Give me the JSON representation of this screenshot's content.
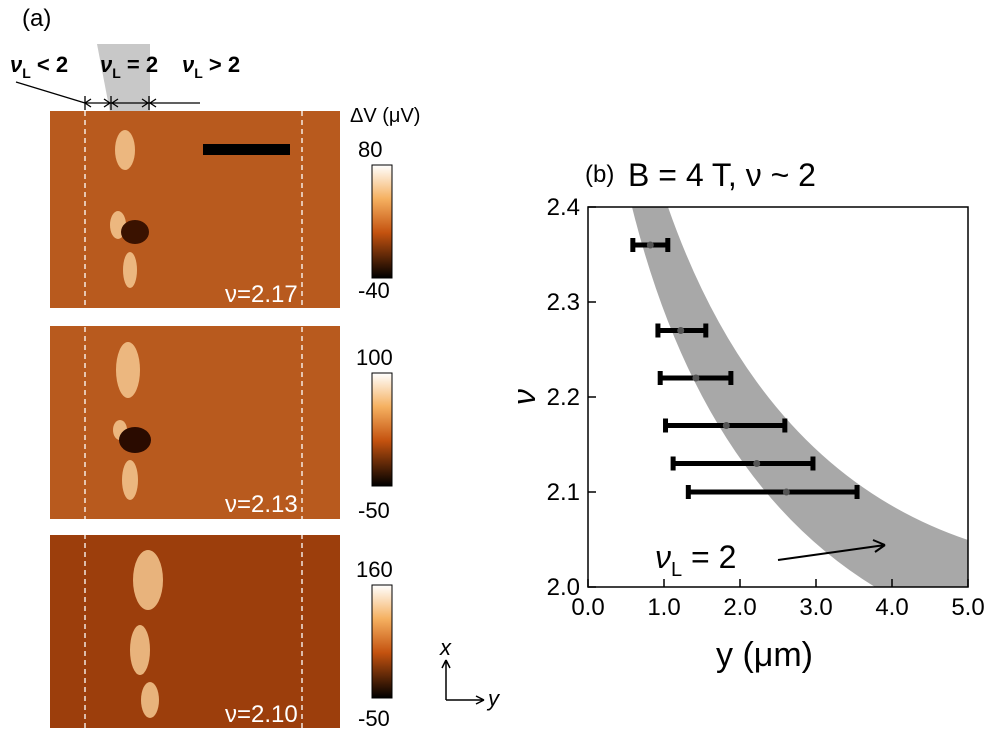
{
  "panel_a": {
    "label": "(a)",
    "regions": [
      {
        "symbol": "ν",
        "sub": "L",
        "rest": " < 2"
      },
      {
        "symbol": "ν",
        "sub": "L",
        "rest": " = 2"
      },
      {
        "symbol": "ν",
        "sub": "L",
        "rest": " > 2"
      }
    ],
    "colorbar_title": "ΔV (μV)",
    "panels": [
      {
        "filling": "ν=2.17",
        "colorbar_max": 80,
        "colorbar_min": -40
      },
      {
        "filling": "ν=2.13",
        "colorbar_max": 100,
        "colorbar_min": -50
      },
      {
        "filling": "ν=2.10",
        "colorbar_max": 160,
        "colorbar_min": -50
      }
    ],
    "axes_x": "x",
    "axes_y": "y"
  },
  "chart_data": {
    "type": "errorbar",
    "panel_label": "(b)",
    "title": "B = 4 T, ν ~ 2",
    "x_label": "y (μm)",
    "y_label": "ν",
    "x": [
      0.82,
      1.22,
      1.42,
      1.82,
      2.22,
      2.61
    ],
    "values": [
      2.36,
      2.27,
      2.22,
      2.17,
      2.13,
      2.1
    ],
    "xerr_minus": [
      0.23,
      0.3,
      0.47,
      0.8,
      1.1,
      1.29
    ],
    "xerr_plus": [
      0.23,
      0.33,
      0.46,
      0.77,
      0.74,
      0.93
    ],
    "color": "#000000",
    "xlim": [
      0,
      5
    ],
    "ylim": [
      2.0,
      2.4
    ],
    "xticks": [
      {
        "value": 0,
        "label": "0.0"
      },
      {
        "value": 1,
        "label": "1.0"
      },
      {
        "value": 2,
        "label": "2.0"
      },
      {
        "value": 3,
        "label": "3.0"
      },
      {
        "value": 4,
        "label": "4.0"
      },
      {
        "value": 5,
        "label": "5.0"
      }
    ],
    "yticks": [
      {
        "value": 2.0,
        "label": "2.0"
      },
      2.1,
      2.2,
      2.3,
      2.4
    ],
    "annotation": {
      "symbol": "ν",
      "sub": "L",
      "rest": " = 2"
    }
  }
}
